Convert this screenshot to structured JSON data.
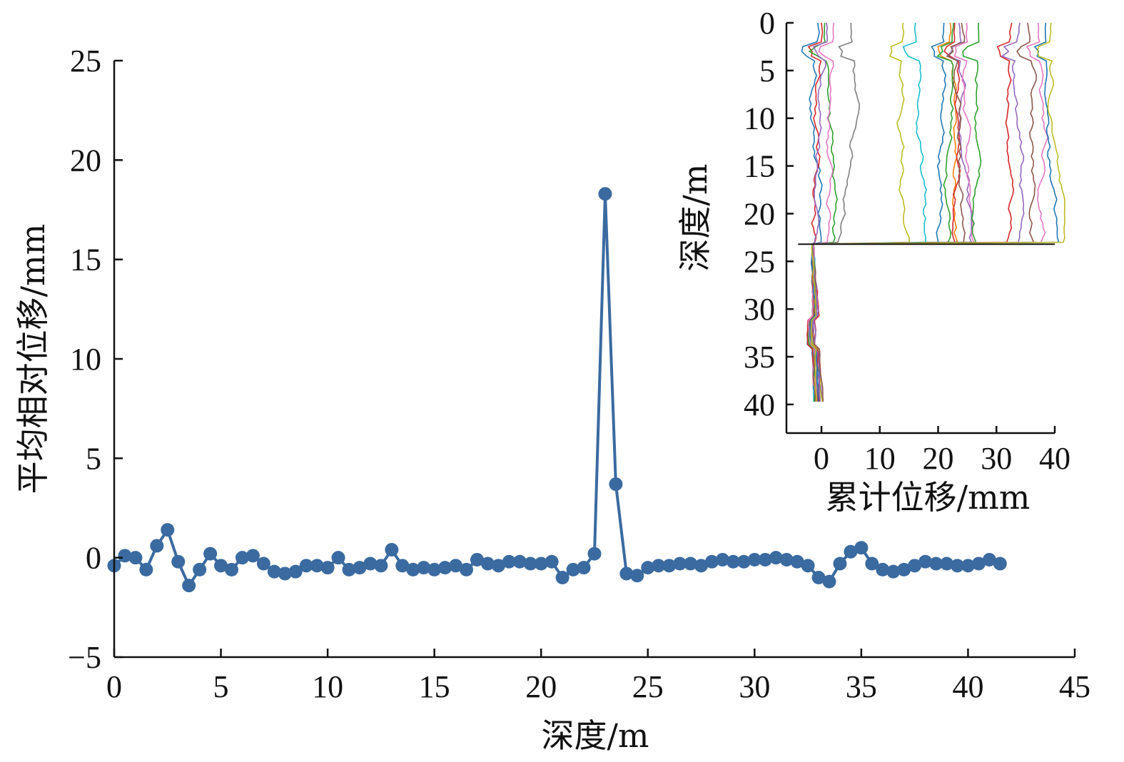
{
  "chart_data": [
    {
      "type": "line",
      "title": "",
      "xlabel": "深度/m",
      "ylabel": "平均相对位移/mm",
      "xlim": [
        0,
        45
      ],
      "ylim": [
        -5,
        25
      ],
      "xticks": [
        "0",
        "5",
        "10",
        "15",
        "20",
        "25",
        "30",
        "35",
        "40",
        "45"
      ],
      "yticks": [
        "−5",
        "0",
        "5",
        "10",
        "15",
        "20",
        "25"
      ],
      "grid": false,
      "legend": "none",
      "color": "#3a6aa0",
      "x": [
        0,
        0.5,
        1,
        1.5,
        2,
        2.5,
        3,
        3.5,
        4,
        4.5,
        5,
        5.5,
        6,
        6.5,
        7,
        7.5,
        8,
        8.5,
        9,
        9.5,
        10,
        10.5,
        11,
        11.5,
        12,
        12.5,
        13,
        13.5,
        14,
        14.5,
        15,
        15.5,
        16,
        16.5,
        17,
        17.5,
        18,
        18.5,
        19,
        19.5,
        20,
        20.5,
        21,
        21.5,
        22,
        22.5,
        23,
        23.5,
        24,
        24.5,
        25,
        25.5,
        26,
        26.5,
        27,
        27.5,
        28,
        28.5,
        29,
        29.5,
        30,
        30.5,
        31,
        31.5,
        32,
        32.5,
        33,
        33.5,
        34,
        34.5,
        35,
        35.5,
        36,
        36.5,
        37,
        37.5,
        38,
        38.5,
        39,
        39.5,
        40,
        40.5,
        41,
        41.5
      ],
      "y": [
        -0.4,
        0.1,
        0.0,
        -0.6,
        0.6,
        1.4,
        -0.2,
        -1.4,
        -0.6,
        0.2,
        -0.4,
        -0.6,
        0.0,
        0.1,
        -0.3,
        -0.7,
        -0.8,
        -0.7,
        -0.4,
        -0.4,
        -0.5,
        0.0,
        -0.6,
        -0.5,
        -0.3,
        -0.4,
        0.4,
        -0.4,
        -0.6,
        -0.5,
        -0.6,
        -0.5,
        -0.4,
        -0.6,
        -0.1,
        -0.3,
        -0.4,
        -0.2,
        -0.2,
        -0.3,
        -0.3,
        -0.2,
        -1.0,
        -0.6,
        -0.5,
        0.2,
        18.3,
        3.7,
        -0.8,
        -0.9,
        -0.5,
        -0.4,
        -0.4,
        -0.3,
        -0.3,
        -0.4,
        -0.2,
        -0.1,
        -0.2,
        -0.2,
        -0.1,
        -0.1,
        0.0,
        -0.1,
        -0.2,
        -0.4,
        -1.0,
        -1.2,
        -0.3,
        0.3,
        0.5,
        -0.3,
        -0.6,
        -0.7,
        -0.6,
        -0.4,
        -0.2,
        -0.3,
        -0.3,
        -0.4,
        -0.4,
        -0.3,
        -0.1,
        -0.3
      ]
    },
    {
      "type": "line",
      "title": "",
      "xlabel": "累计位移/mm",
      "ylabel": "深度/m",
      "xlim": [
        -6,
        40
      ],
      "ylim": [
        43,
        0
      ],
      "xticks": [
        "0",
        "10",
        "20",
        "30",
        "40"
      ],
      "yticks": [
        "0",
        "5",
        "10",
        "15",
        "20",
        "25",
        "30",
        "35",
        "40"
      ],
      "grid": false,
      "legend": "none",
      "reference_depth": 23.2,
      "series_colors": [
        "#1f77b4",
        "#ff7f0e",
        "#2ca02c",
        "#d62728",
        "#9467bd",
        "#8c564b",
        "#e377c2",
        "#7f7f7f",
        "#bcbd22",
        "#17becf"
      ],
      "series": [
        {
          "offset": -0.5,
          "color": "#1f77b4"
        },
        {
          "offset": 0.0,
          "color": "#d62728"
        },
        {
          "offset": 0.5,
          "color": "#2ca02c"
        },
        {
          "offset": 1.0,
          "color": "#9467bd"
        },
        {
          "offset": 2.0,
          "color": "#e377c2"
        },
        {
          "offset": 5.0,
          "color": "#7f7f7f"
        },
        {
          "offset": 14.0,
          "color": "#bcbd22"
        },
        {
          "offset": 16.0,
          "color": "#17becf"
        },
        {
          "offset": 21.0,
          "color": "#1f77b4"
        },
        {
          "offset": 22.0,
          "color": "#ff7f0e"
        },
        {
          "offset": 22.5,
          "color": "#2ca02c"
        },
        {
          "offset": 23.0,
          "color": "#d62728"
        },
        {
          "offset": 23.5,
          "color": "#9467bd"
        },
        {
          "offset": 24.0,
          "color": "#8c564b"
        },
        {
          "offset": 25.0,
          "color": "#e377c2"
        },
        {
          "offset": 27.0,
          "color": "#2ca02c"
        },
        {
          "offset": 32.5,
          "color": "#d62728"
        },
        {
          "offset": 34.0,
          "color": "#9467bd"
        },
        {
          "offset": 35.5,
          "color": "#8c564b"
        },
        {
          "offset": 37.0,
          "color": "#e377c2"
        },
        {
          "offset": 38.5,
          "color": "#1f77b4"
        },
        {
          "offset": 39.5,
          "color": "#bcbd22"
        }
      ]
    }
  ]
}
